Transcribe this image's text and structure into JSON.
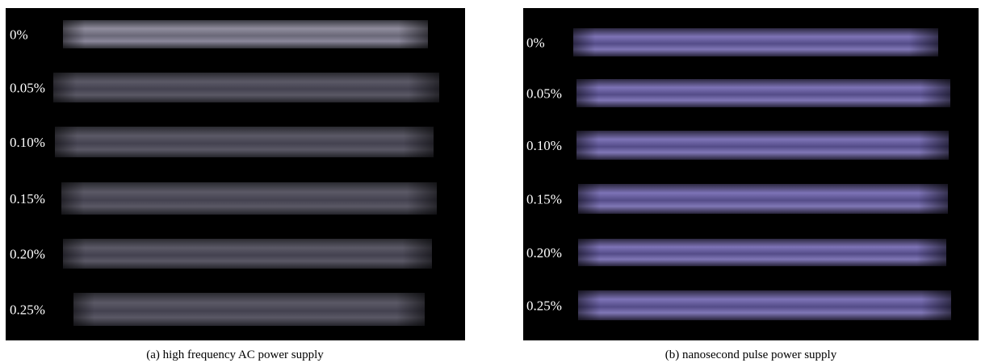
{
  "panels": [
    {
      "caption": "(a) high frequency AC power supply",
      "rows": [
        "0%",
        "0.05%",
        "0.10%",
        "0.15%",
        "0.20%",
        "0.25%"
      ]
    },
    {
      "caption": "(b) nanosecond pulse power supply",
      "rows": [
        "0%",
        "0.05%",
        "0.10%",
        "0.15%",
        "0.20%",
        "0.25%"
      ]
    }
  ]
}
